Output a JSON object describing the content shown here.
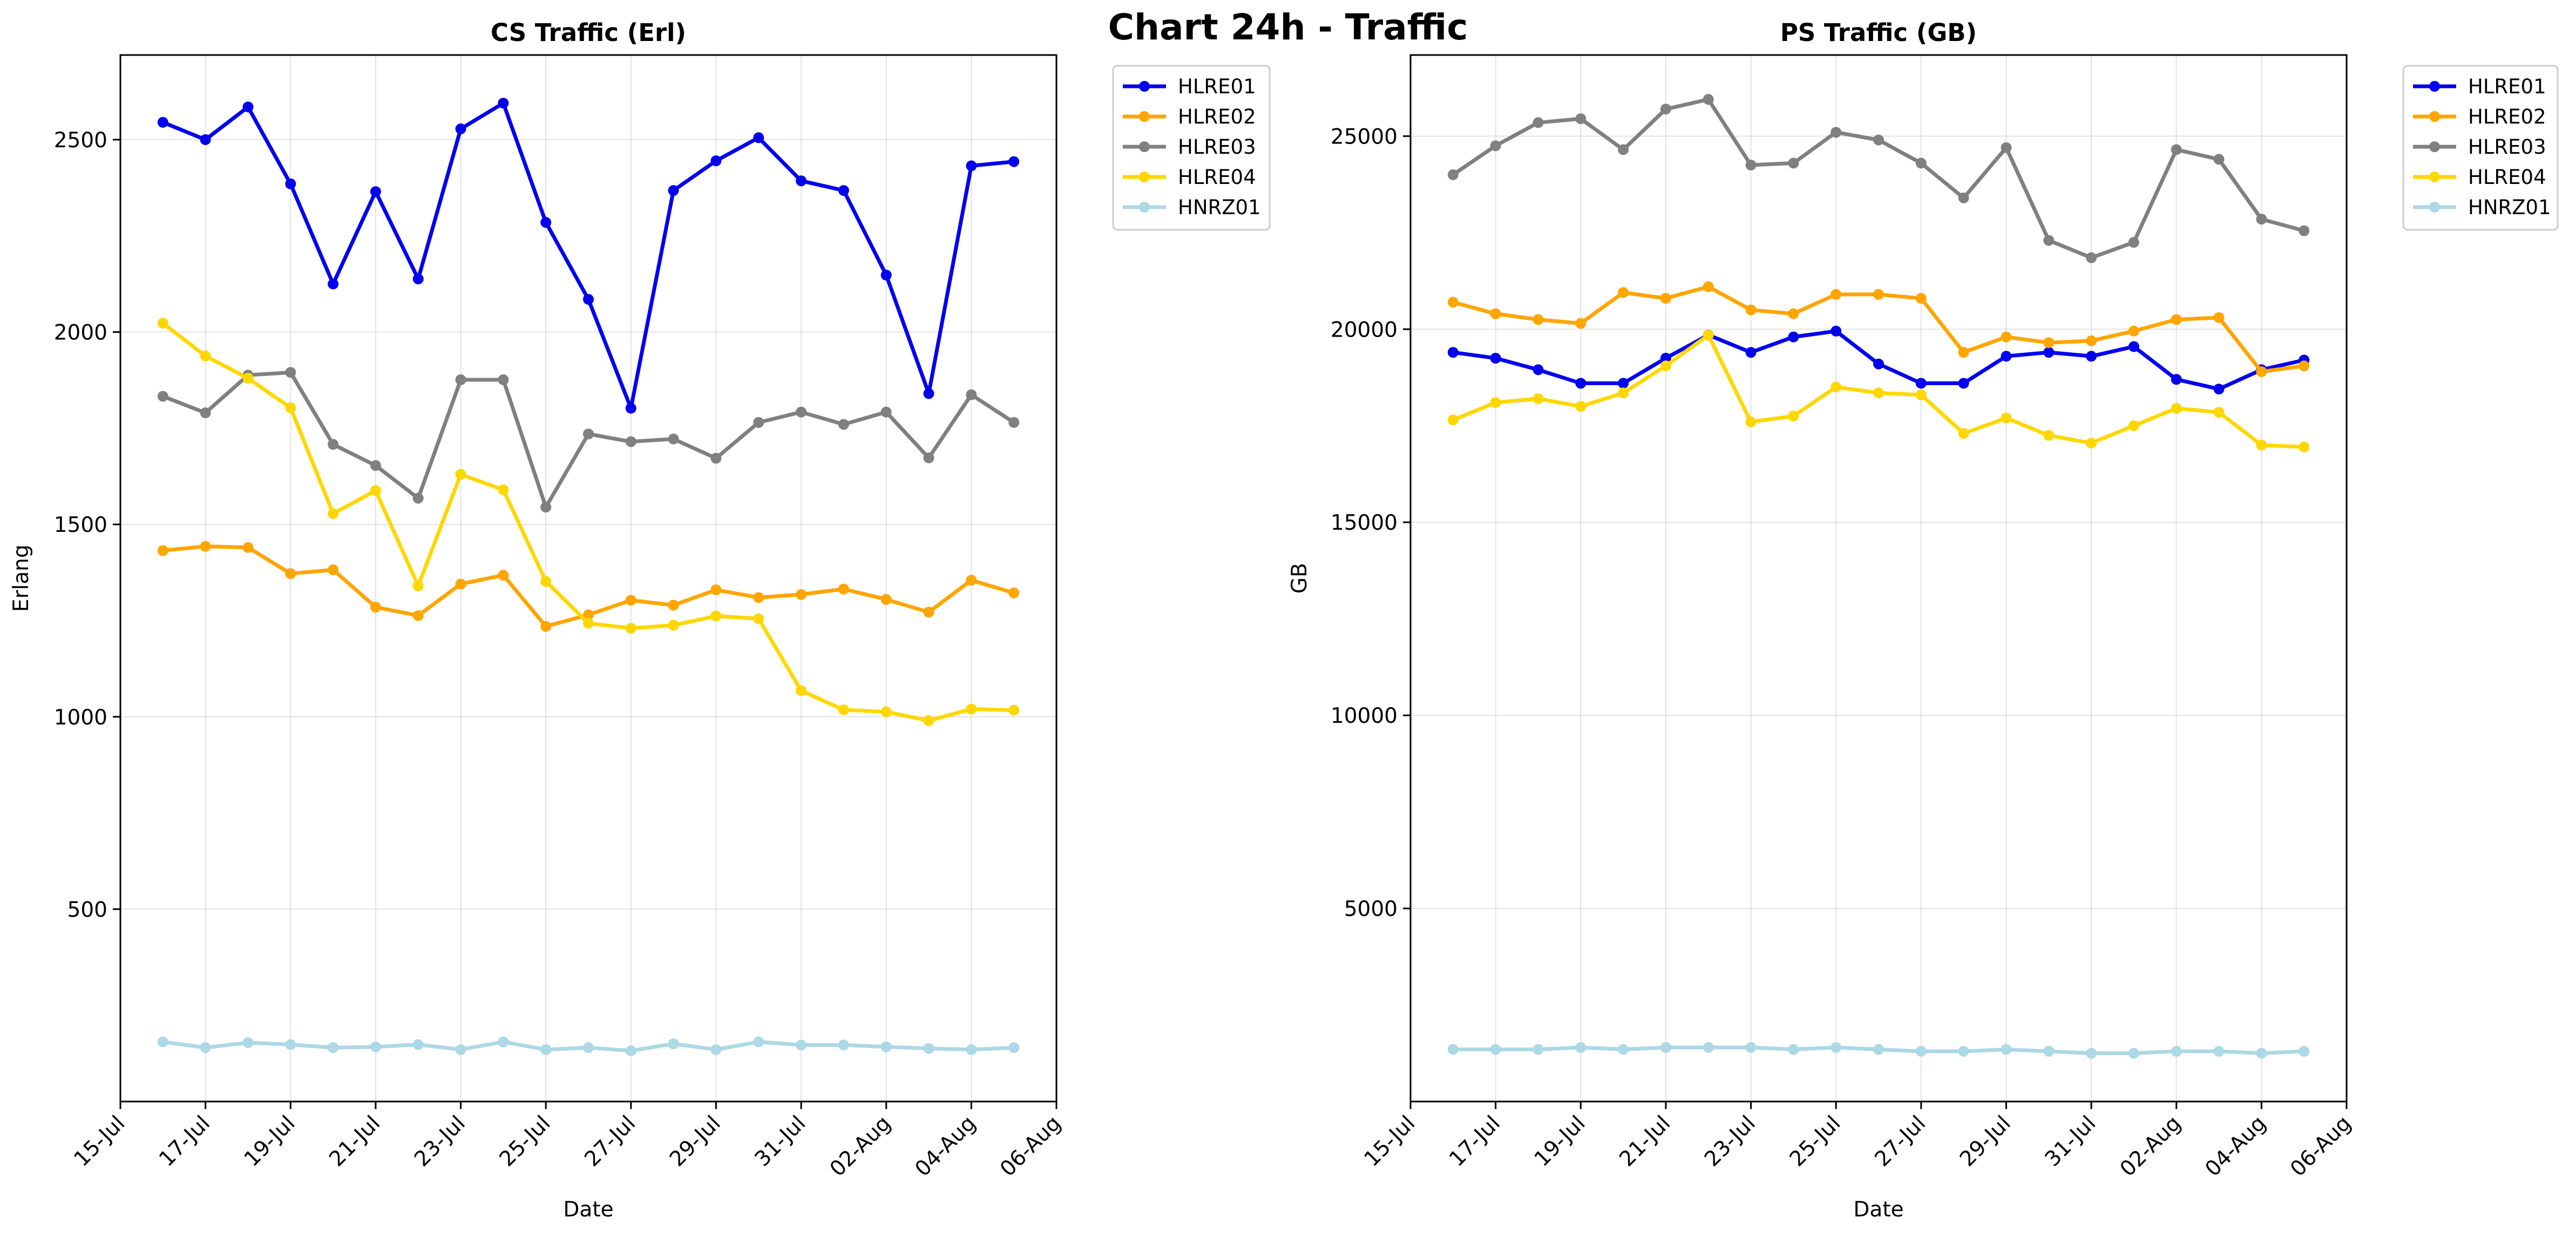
{
  "suptitle": "Chart 24h - Traffic",
  "colors": {
    "HLRE01": "#0000ee",
    "HLRE02": "#ffa500",
    "HLRE03": "#808080",
    "HLRE04": "#ffd700",
    "HNRZ01": "#add8e6"
  },
  "x_tick_labels": [
    "15-Jul",
    "17-Jul",
    "19-Jul",
    "21-Jul",
    "23-Jul",
    "25-Jul",
    "27-Jul",
    "29-Jul",
    "31-Jul",
    "02-Aug",
    "04-Aug",
    "06-Aug"
  ],
  "chart_data": [
    {
      "type": "line",
      "title": "CS Traffic (Erl)",
      "xlabel": "Date",
      "ylabel": "Erlang",
      "grid": true,
      "legend_position": "outside-top-right",
      "xlim": [
        "2025-07-15",
        "2025-08-06"
      ],
      "ylim": [
        0,
        2720
      ],
      "yticks": [
        500,
        1000,
        1500,
        2000,
        2500
      ],
      "x": [
        "2025-07-16",
        "2025-07-17",
        "2025-07-18",
        "2025-07-19",
        "2025-07-20",
        "2025-07-21",
        "2025-07-22",
        "2025-07-23",
        "2025-07-24",
        "2025-07-25",
        "2025-07-26",
        "2025-07-27",
        "2025-07-28",
        "2025-07-29",
        "2025-07-30",
        "2025-07-31",
        "2025-08-01",
        "2025-08-02",
        "2025-08-03",
        "2025-08-04",
        "2025-08-05"
      ],
      "series": [
        {
          "name": "HLRE01",
          "values": [
            2545,
            2500,
            2585,
            2385,
            2125,
            2365,
            2138,
            2528,
            2595,
            2285,
            2085,
            1802,
            2368,
            2445,
            2505,
            2393,
            2368,
            2148,
            1840,
            2432,
            2443
          ]
        },
        {
          "name": "HLRE02",
          "values": [
            1432,
            1443,
            1440,
            1372,
            1382,
            1285,
            1263,
            1345,
            1368,
            1235,
            1265,
            1303,
            1290,
            1330,
            1310,
            1318,
            1332,
            1305,
            1272,
            1355,
            1322
          ]
        },
        {
          "name": "HLRE03",
          "values": [
            1833,
            1790,
            1888,
            1895,
            1708,
            1653,
            1568,
            1876,
            1876,
            1545,
            1735,
            1715,
            1722,
            1672,
            1765,
            1792,
            1760,
            1792,
            1673,
            1837,
            1765
          ]
        },
        {
          "name": "HLRE04",
          "values": [
            2023,
            1938,
            1880,
            1803,
            1528,
            1588,
            1340,
            1630,
            1590,
            1352,
            1243,
            1230,
            1238,
            1262,
            1255,
            1068,
            1018,
            1013,
            990,
            1020,
            1017
          ]
        },
        {
          "name": "HNRZ01",
          "values": [
            155,
            140,
            153,
            148,
            140,
            142,
            148,
            135,
            155,
            135,
            140,
            132,
            150,
            135,
            155,
            147,
            147,
            142,
            138,
            135,
            140
          ]
        }
      ]
    },
    {
      "type": "line",
      "title": "PS Traffic (GB)",
      "xlabel": "Date",
      "ylabel": "GB",
      "grid": true,
      "legend_position": "outside-top-right",
      "xlim": [
        "2025-07-15",
        "2025-08-06"
      ],
      "ylim": [
        0,
        27100
      ],
      "yticks": [
        5000,
        10000,
        15000,
        20000,
        25000
      ],
      "x": [
        "2025-07-16",
        "2025-07-17",
        "2025-07-18",
        "2025-07-19",
        "2025-07-20",
        "2025-07-21",
        "2025-07-22",
        "2025-07-23",
        "2025-07-24",
        "2025-07-25",
        "2025-07-26",
        "2025-07-27",
        "2025-07-28",
        "2025-07-29",
        "2025-07-30",
        "2025-07-31",
        "2025-08-01",
        "2025-08-02",
        "2025-08-03",
        "2025-08-04",
        "2025-08-05"
      ],
      "series": [
        {
          "name": "HLRE01",
          "values": [
            19400,
            19250,
            18950,
            18600,
            18600,
            19250,
            19850,
            19400,
            19800,
            19950,
            19100,
            18600,
            18600,
            19300,
            19400,
            19300,
            19550,
            18700,
            18450,
            18950,
            19200
          ]
        },
        {
          "name": "HLRE02",
          "values": [
            20700,
            20400,
            20250,
            20150,
            20950,
            20800,
            21100,
            20500,
            20400,
            20900,
            20900,
            20800,
            19400,
            19800,
            19650,
            19700,
            19950,
            20250,
            20300,
            18900,
            19050
          ]
        },
        {
          "name": "HLRE03",
          "values": [
            24000,
            24750,
            25350,
            25450,
            24650,
            25700,
            25950,
            24250,
            24300,
            25100,
            24900,
            24300,
            23400,
            24700,
            22300,
            21850,
            22250,
            24650,
            24400,
            22850,
            22550
          ]
        },
        {
          "name": "HLRE04",
          "values": [
            17650,
            18100,
            18200,
            18000,
            18350,
            19050,
            19850,
            17600,
            17750,
            18500,
            18350,
            18300,
            17300,
            17700,
            17250,
            17050,
            17500,
            17950,
            17850,
            17000,
            16950
          ]
        },
        {
          "name": "HNRZ01",
          "values": [
            1350,
            1350,
            1350,
            1400,
            1350,
            1400,
            1400,
            1400,
            1350,
            1400,
            1350,
            1300,
            1300,
            1350,
            1300,
            1250,
            1250,
            1300,
            1300,
            1250,
            1300
          ]
        }
      ]
    }
  ]
}
